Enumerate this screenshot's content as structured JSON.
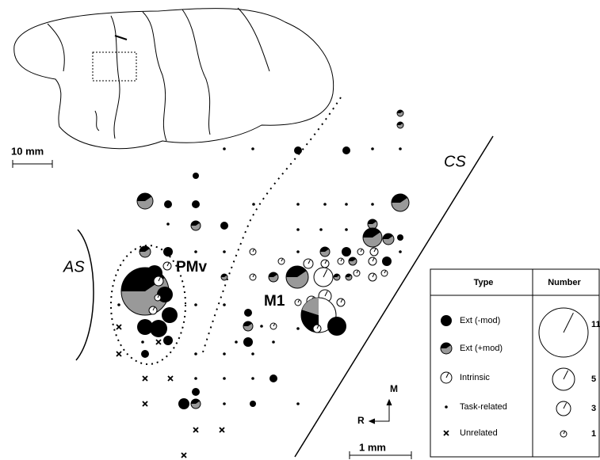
{
  "map": {
    "scale_bar_large": "10 mm",
    "labels": {
      "cs": "CS",
      "as": "AS",
      "pmv": "PMv",
      "m1": "M1"
    },
    "compass": {
      "m": "M",
      "r": "R"
    },
    "scale_bar_small": "1 mm"
  },
  "legend": {
    "headers": [
      "Type",
      "Number"
    ],
    "types": [
      "Ext (-mod)",
      "Ext (+mod)",
      "Intrinsic",
      "Task-related",
      "Unrelated"
    ],
    "sizes": [
      "11",
      "5",
      "3",
      "1"
    ]
  }
}
